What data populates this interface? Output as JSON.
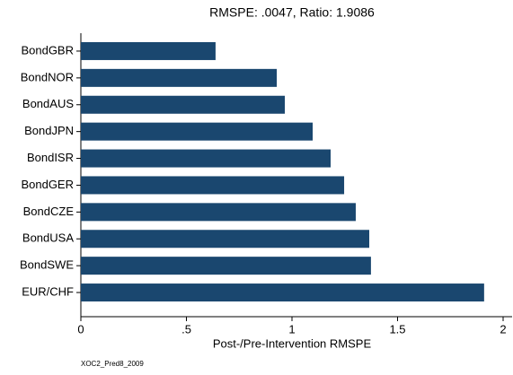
{
  "chart_data": {
    "type": "barh",
    "title": "RMSPE: .0047,   Ratio: 1.9086",
    "xlabel": "Post-/Pre-Intervention RMSPE",
    "note": "XOC2_Pred8_2009",
    "categories": [
      "BondGBR",
      "BondNOR",
      "BondAUS",
      "BondJPN",
      "BondISR",
      "BondGER",
      "BondCZE",
      "BondUSA",
      "BondSWE",
      "EUR/CHF"
    ],
    "values": [
      0.638,
      0.928,
      0.966,
      1.098,
      1.183,
      1.247,
      1.302,
      1.366,
      1.374,
      1.91
    ],
    "color": "#1a476f",
    "xlim": [
      0,
      2
    ],
    "xticks": [
      0,
      {
        "value": 0.5,
        "label": ".5"
      },
      1,
      1.5,
      2
    ]
  }
}
